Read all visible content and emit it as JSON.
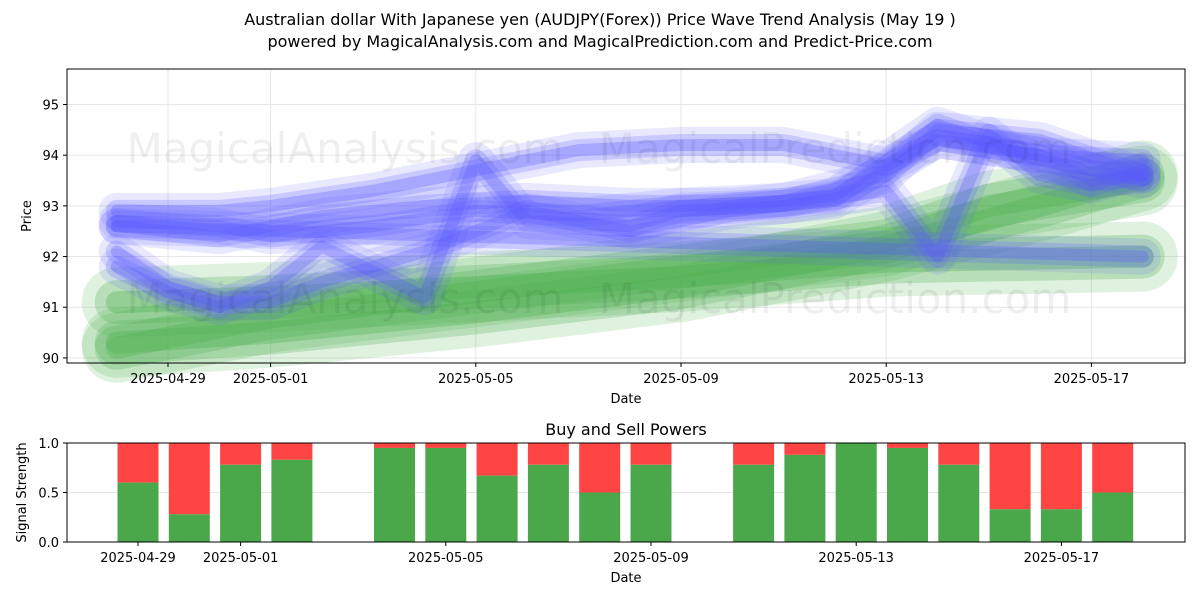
{
  "header": {
    "title": "Australian dollar With Japanese yen (AUDJPY(Forex)) Price Wave Trend Analysis (May 19 )",
    "subtitle": "powered by MagicalAnalysis.com and MagicalPrediction.com and Predict-Price.com"
  },
  "watermarks": [
    "MagicalAnalysis.com",
    "MagicalPrediction.com"
  ],
  "colors": {
    "blue": "#5a5aff",
    "green": "#4caf50",
    "buy": "#4aa84a",
    "sell": "#ff4444",
    "grid": "#e6e6e6"
  },
  "chart_data": [
    {
      "type": "line",
      "title": "",
      "xlabel": "Date",
      "ylabel": "Price",
      "ylim": [
        89.9,
        95.7
      ],
      "yticks": [
        90,
        91,
        92,
        93,
        94,
        95
      ],
      "xticks": [
        "2025-04-29",
        "2025-05-01",
        "2025-05-05",
        "2025-05-09",
        "2025-05-13",
        "2025-05-17"
      ],
      "grid": true,
      "blue_band_series": [
        {
          "x": [
            "2025-04-28",
            "2025-04-30",
            "2025-05-01",
            "2025-05-03",
            "2025-05-05",
            "2025-05-07",
            "2025-05-09",
            "2025-05-11",
            "2025-05-13",
            "2025-05-14",
            "2025-05-16",
            "2025-05-18"
          ],
          "values": [
            92.9,
            92.9,
            93.0,
            93.3,
            93.7,
            94.1,
            94.2,
            94.2,
            93.8,
            94.3,
            94.0,
            93.9
          ]
        },
        {
          "x": [
            "2025-04-28",
            "2025-04-30",
            "2025-05-01",
            "2025-05-03",
            "2025-05-05",
            "2025-05-07",
            "2025-05-09",
            "2025-05-11",
            "2025-05-13",
            "2025-05-14",
            "2025-05-16",
            "2025-05-18"
          ],
          "values": [
            92.7,
            92.6,
            92.4,
            92.6,
            92.9,
            92.8,
            93.0,
            93.1,
            93.6,
            94.5,
            94.3,
            93.6
          ]
        },
        {
          "x": [
            "2025-04-28",
            "2025-04-29",
            "2025-04-30",
            "2025-05-01",
            "2025-05-02",
            "2025-05-04",
            "2025-05-05",
            "2025-05-06",
            "2025-05-08",
            "2025-05-09",
            "2025-05-11",
            "2025-05-13",
            "2025-05-14",
            "2025-05-15",
            "2025-05-16",
            "2025-05-17",
            "2025-05-18"
          ],
          "values": [
            91.8,
            91.3,
            91.0,
            91.4,
            92.2,
            91.2,
            93.9,
            92.7,
            92.6,
            92.9,
            93.0,
            93.3,
            92.0,
            94.4,
            93.6,
            93.4,
            93.7
          ]
        },
        {
          "x": [
            "2025-04-28",
            "2025-04-29",
            "2025-04-30",
            "2025-05-01",
            "2025-05-02",
            "2025-05-04",
            "2025-05-06",
            "2025-05-08",
            "2025-05-10",
            "2025-05-12",
            "2025-05-14",
            "2025-05-16",
            "2025-05-17",
            "2025-05-18"
          ],
          "values": [
            92.1,
            91.4,
            91.1,
            91.1,
            91.5,
            92.1,
            92.9,
            92.5,
            92.9,
            93.1,
            94.3,
            94.0,
            93.5,
            93.6
          ]
        },
        {
          "x": [
            "2025-04-28",
            "2025-04-30",
            "2025-05-02",
            "2025-05-04",
            "2025-05-06",
            "2025-05-08",
            "2025-05-10",
            "2025-05-12",
            "2025-05-14",
            "2025-05-16",
            "2025-05-18"
          ],
          "values": [
            92.6,
            92.4,
            92.8,
            93.0,
            93.1,
            93.0,
            93.0,
            93.2,
            94.6,
            93.9,
            93.5
          ]
        },
        {
          "x": [
            "2025-04-28",
            "2025-05-18"
          ],
          "values": [
            92.6,
            92.0
          ]
        }
      ],
      "green_band_series": [
        {
          "x": [
            "2025-04-28",
            "2025-05-01",
            "2025-05-05",
            "2025-05-09",
            "2025-05-13",
            "2025-05-15",
            "2025-05-18"
          ],
          "values": [
            90.2,
            90.8,
            91.3,
            91.8,
            92.3,
            93.0,
            93.5
          ]
        },
        {
          "x": [
            "2025-04-28",
            "2025-05-01",
            "2025-05-05",
            "2025-05-09",
            "2025-05-13",
            "2025-05-18"
          ],
          "values": [
            91.1,
            91.2,
            91.4,
            91.6,
            91.9,
            92.0
          ]
        },
        {
          "x": [
            "2025-04-28",
            "2025-05-01",
            "2025-05-05",
            "2025-05-09",
            "2025-05-13",
            "2025-05-16",
            "2025-05-18"
          ],
          "values": [
            90.3,
            90.5,
            90.9,
            91.4,
            92.2,
            93.0,
            93.6
          ]
        }
      ]
    },
    {
      "type": "bar",
      "title": "Buy and Sell Powers",
      "xlabel": "Date",
      "ylabel": "Signal Strength",
      "ylim": [
        0,
        1
      ],
      "yticks": [
        "0.0",
        "0.5",
        "1.0"
      ],
      "xticks": [
        "2025-04-29",
        "2025-05-01",
        "2025-05-05",
        "2025-05-09",
        "2025-05-13",
        "2025-05-17"
      ],
      "categories": [
        "2025-04-29",
        "2025-04-30",
        "2025-05-01",
        "2025-05-02",
        "2025-05-04",
        "2025-05-05",
        "2025-05-06",
        "2025-05-07",
        "2025-05-08",
        "2025-05-09",
        "2025-05-11",
        "2025-05-12",
        "2025-05-13",
        "2025-05-14",
        "2025-05-15",
        "2025-05-16",
        "2025-05-17",
        "2025-05-18"
      ],
      "series": [
        {
          "values": [
            0.6,
            0.28,
            0.78,
            0.83,
            0.95,
            0.95,
            0.67,
            0.78,
            0.5,
            0.78,
            0.78,
            0.88,
            1.0,
            0.95,
            0.78,
            0.33,
            0.33,
            0.5
          ]
        },
        {
          "values": [
            0.4,
            0.72,
            0.22,
            0.17,
            0.05,
            0.05,
            0.33,
            0.22,
            0.5,
            0.22,
            0.22,
            0.12,
            0.0,
            0.05,
            0.22,
            0.67,
            0.67,
            0.5
          ]
        }
      ]
    }
  ]
}
